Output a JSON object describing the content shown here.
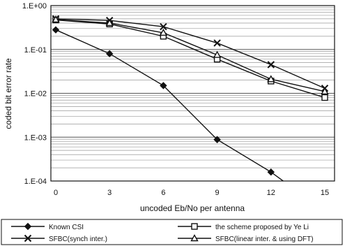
{
  "chart_data": {
    "type": "line",
    "title": "",
    "xlabel": "uncoded Eb/No per antenna",
    "ylabel": "coded bit error rate",
    "x": [
      0,
      3,
      6,
      9,
      12,
      15
    ],
    "x_tick_labels": [
      "0",
      "3",
      "6",
      "9",
      "12",
      "15"
    ],
    "y_scale": "log",
    "ylim": [
      0.0001,
      1
    ],
    "y_tick_labels": [
      "1.E+00",
      "1.E-01",
      "1.E-02",
      "1.E-03",
      "1.E-04"
    ],
    "grid": true,
    "legend_position": "bottom",
    "series": [
      {
        "name": "Known CSI",
        "marker": "diamond",
        "x": [
          0,
          3,
          6,
          9,
          12,
          13.2
        ],
        "values": [
          0.28,
          0.08,
          0.015,
          0.00088,
          0.00016,
          7e-05
        ]
      },
      {
        "name": "the scheme proposed by Ye Li",
        "marker": "square",
        "x": [
          0,
          3,
          6,
          9,
          12,
          15
        ],
        "values": [
          0.47,
          0.38,
          0.2,
          0.06,
          0.019,
          0.008
        ]
      },
      {
        "name": "SFBC(synch inter.)",
        "marker": "x",
        "x": [
          0,
          3,
          6,
          9,
          12,
          15
        ],
        "values": [
          0.5,
          0.46,
          0.33,
          0.14,
          0.045,
          0.013
        ]
      },
      {
        "name": "SFBC(linear inter. & using DFT)",
        "marker": "triangle",
        "x": [
          0,
          3,
          6,
          9,
          12,
          15
        ],
        "values": [
          0.48,
          0.4,
          0.24,
          0.075,
          0.021,
          0.011
        ]
      }
    ]
  }
}
